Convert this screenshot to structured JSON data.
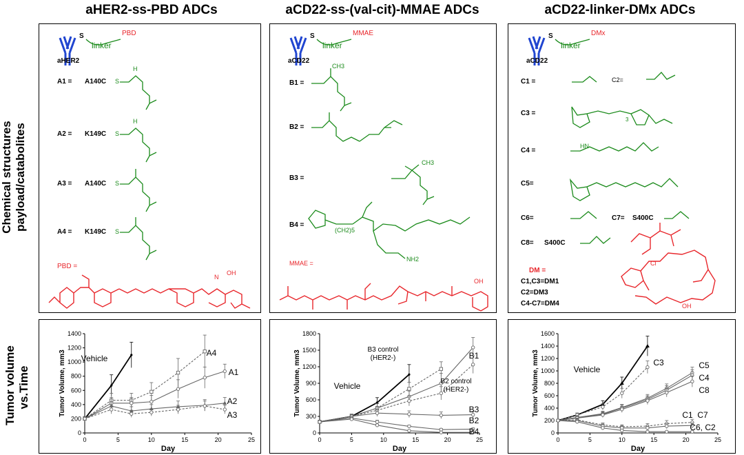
{
  "columns": {
    "col1_title": "aHER2-ss-PBD ADCs",
    "col2_title": "aCD22-ss-(val-cit)-MMAE ADCs",
    "col3_title": "aCD22-linker-DMx ADCs"
  },
  "rows": {
    "row1_label_line1": "Chemical structures",
    "row1_label_line2": "payload/catabolites",
    "row2_label_line1": "Tumor volume",
    "row2_label_line2": "vs.Time"
  },
  "struct": {
    "p1": {
      "ab_name": "aHER2",
      "s": "S",
      "linker": "linker",
      "payload": "PBD",
      "labels": [
        "A1 =",
        "A2 =",
        "A3 =",
        "A4 ="
      ],
      "sites": [
        "A140C",
        "K149C",
        "A140C",
        "K149C"
      ],
      "h": "H",
      "payload_eq": "PBD =",
      "n_me": "N",
      "oh": "OH",
      "h2": "H"
    },
    "p2": {
      "ab_name": "aCD22",
      "s": "S",
      "linker": "linker",
      "payload": "MMAE",
      "labels": [
        "B1 =",
        "B2 =",
        "B3 =",
        "B4 ="
      ],
      "payload_eq": "MMAE =",
      "ch3": "CH3",
      "ch2n": "(CH2)5",
      "nh2": "NH2",
      "oh": "OH"
    },
    "p3": {
      "ab_name": "aCD22",
      "s": "S",
      "linker": "linker",
      "payload": "DMx",
      "labels": [
        "C1 =",
        "C2=",
        "C3 =",
        "C4 =",
        "C5=",
        "C6=",
        "C7=",
        "C8="
      ],
      "site": "S400C",
      "dm_eq": "DM =",
      "dm_lines": [
        "C1,C3=DM1",
        "C2=DM3",
        "C4-C7=DM4"
      ],
      "sub3": "3",
      "cl": "Cl",
      "oh": "OH",
      "hn": "HN"
    }
  },
  "chart_data": [
    {
      "type": "line",
      "title": "",
      "xlabel": "Day",
      "ylabel": "Tumor Volume, mm3",
      "xlim": [
        0,
        25
      ],
      "ylim": [
        0,
        1400
      ],
      "xticks": [
        "0",
        "5",
        "10",
        "15",
        "20",
        "25"
      ],
      "yticks": [
        "0",
        "200",
        "400",
        "600",
        "800",
        "1000",
        "1200",
        "1400"
      ],
      "series": [
        {
          "name": "Vehicle",
          "x": [
            0,
            4,
            7
          ],
          "y": [
            200,
            670,
            1100
          ],
          "err": [
            30,
            150,
            180
          ],
          "style": "solid",
          "marker": "none",
          "bold": true
        },
        {
          "name": "A4",
          "x": [
            0,
            4,
            7,
            10,
            14,
            18
          ],
          "y": [
            200,
            460,
            460,
            580,
            850,
            1150
          ],
          "err": [
            30,
            100,
            100,
            130,
            200,
            230
          ],
          "style": "dashed",
          "marker": "square"
        },
        {
          "name": "A1",
          "x": [
            0,
            4,
            7,
            10,
            14,
            18,
            21
          ],
          "y": [
            200,
            420,
            420,
            440,
            620,
            780,
            870
          ],
          "err": [
            30,
            80,
            80,
            90,
            130,
            150,
            100
          ],
          "style": "solid",
          "marker": "circle"
        },
        {
          "name": "A2",
          "x": [
            0,
            4,
            7,
            10,
            14,
            18,
            21
          ],
          "y": [
            200,
            380,
            310,
            340,
            370,
            390,
            420
          ],
          "err": [
            30,
            60,
            60,
            60,
            80,
            80,
            80
          ],
          "style": "solid",
          "marker": "triangle"
        },
        {
          "name": "A3",
          "x": [
            0,
            4,
            7,
            10,
            14,
            18,
            21
          ],
          "y": [
            200,
            330,
            270,
            290,
            330,
            380,
            330
          ],
          "err": [
            30,
            60,
            50,
            50,
            60,
            70,
            60
          ],
          "style": "dashed",
          "marker": "circle"
        }
      ]
    },
    {
      "type": "line",
      "title": "",
      "xlabel": "Day",
      "ylabel": "Tumor Volume, mm3",
      "xlim": [
        0,
        25
      ],
      "ylim": [
        0,
        1800
      ],
      "xticks": [
        "0",
        "5",
        "10",
        "15",
        "20",
        "25"
      ],
      "yticks": [
        "0",
        "300",
        "600",
        "900",
        "1200",
        "1500",
        "1800"
      ],
      "series": [
        {
          "name": "Vehicle",
          "x": [
            0,
            5,
            9,
            14
          ],
          "y": [
            200,
            300,
            550,
            1060
          ],
          "err": [
            30,
            40,
            90,
            180
          ],
          "style": "solid",
          "marker": "none",
          "bold": true
        },
        {
          "name": "B3 control (HER2-)",
          "x": [
            0,
            5,
            9,
            14,
            19
          ],
          "y": [
            200,
            300,
            450,
            800,
            1160
          ],
          "err": [
            30,
            40,
            80,
            120,
            130
          ],
          "style": "dashed",
          "marker": "square"
        },
        {
          "name": "B1",
          "x": [
            0,
            5,
            9,
            14,
            19,
            24
          ],
          "y": [
            200,
            300,
            450,
            660,
            900,
            1550
          ],
          "err": [
            30,
            40,
            80,
            100,
            180,
            180
          ],
          "style": "solid",
          "marker": "circle"
        },
        {
          "name": "B2 control (HER2-)",
          "x": [
            0,
            5,
            9,
            14,
            19,
            24
          ],
          "y": [
            200,
            300,
            410,
            580,
            720,
            1240
          ],
          "err": [
            30,
            40,
            70,
            90,
            120,
            160
          ],
          "style": "dashed",
          "marker": "circle"
        },
        {
          "name": "B3",
          "x": [
            0,
            5,
            9,
            14,
            19,
            24
          ],
          "y": [
            200,
            300,
            360,
            340,
            320,
            330
          ],
          "err": [
            30,
            40,
            60,
            60,
            60,
            60
          ],
          "style": "solid",
          "marker": "circle"
        },
        {
          "name": "B2",
          "x": [
            0,
            5,
            9,
            14,
            19,
            24
          ],
          "y": [
            200,
            270,
            200,
            120,
            60,
            70
          ],
          "err": [
            30,
            30,
            30,
            20,
            20,
            20
          ],
          "style": "solid",
          "marker": "circle"
        },
        {
          "name": "B4",
          "x": [
            0,
            5,
            9,
            14,
            19,
            24
          ],
          "y": [
            200,
            250,
            140,
            40,
            10,
            10
          ],
          "err": [
            30,
            30,
            20,
            10,
            5,
            5
          ],
          "style": "solid",
          "marker": "circle"
        }
      ]
    },
    {
      "type": "line",
      "title": "",
      "xlabel": "Day",
      "ylabel": "Tumor Volume, mm3",
      "xlim": [
        0,
        25
      ],
      "ylim": [
        0,
        1600
      ],
      "xticks": [
        "0",
        "5",
        "10",
        "15",
        "20",
        "25"
      ],
      "yticks": [
        "0",
        "200",
        "400",
        "600",
        "800",
        "1000",
        "1200",
        "1400",
        "1600"
      ],
      "series": [
        {
          "name": "Vehicle",
          "x": [
            0,
            3,
            7,
            10,
            14
          ],
          "y": [
            200,
            290,
            460,
            800,
            1400
          ],
          "err": [
            20,
            30,
            60,
            100,
            160
          ],
          "style": "solid",
          "marker": "triangle",
          "bold": true
        },
        {
          "name": "C3",
          "x": [
            0,
            3,
            7,
            10,
            14
          ],
          "y": [
            200,
            290,
            420,
            640,
            1060
          ],
          "err": [
            20,
            30,
            50,
            80,
            100
          ],
          "style": "dashed",
          "marker": "circle"
        },
        {
          "name": "C5",
          "x": [
            0,
            3,
            7,
            10,
            14,
            17,
            21
          ],
          "y": [
            200,
            250,
            310,
            410,
            560,
            720,
            970
          ],
          "err": [
            20,
            30,
            40,
            50,
            60,
            70,
            90
          ],
          "style": "solid",
          "marker": "circle"
        },
        {
          "name": "C4",
          "x": [
            0,
            3,
            7,
            10,
            14,
            17,
            21
          ],
          "y": [
            200,
            250,
            300,
            400,
            540,
            690,
            930
          ],
          "err": [
            20,
            30,
            40,
            50,
            60,
            70,
            90
          ],
          "style": "solid",
          "marker": "circle"
        },
        {
          "name": "C8",
          "x": [
            0,
            3,
            7,
            10,
            14,
            17,
            21
          ],
          "y": [
            200,
            240,
            290,
            380,
            520,
            650,
            830
          ],
          "err": [
            20,
            30,
            40,
            50,
            60,
            70,
            90
          ],
          "style": "solid",
          "marker": "circle"
        },
        {
          "name": "C1",
          "x": [
            0,
            3,
            7,
            10,
            14,
            17,
            21
          ],
          "y": [
            200,
            210,
            130,
            100,
            110,
            150,
            170
          ],
          "err": [
            20,
            30,
            30,
            30,
            40,
            50,
            50
          ],
          "style": "dashed",
          "marker": "circle"
        },
        {
          "name": "C7",
          "x": [
            0,
            3,
            7,
            10,
            14,
            17,
            21
          ],
          "y": [
            200,
            200,
            110,
            80,
            80,
            110,
            120
          ],
          "err": [
            20,
            30,
            30,
            30,
            30,
            40,
            40
          ],
          "style": "solid",
          "marker": "circle"
        },
        {
          "name": "C6, C2",
          "x": [
            0,
            3,
            7,
            10,
            14,
            17,
            21
          ],
          "y": [
            200,
            180,
            80,
            40,
            20,
            20,
            20
          ],
          "err": [
            20,
            30,
            20,
            20,
            10,
            10,
            10
          ],
          "style": "solid",
          "marker": "circle"
        }
      ]
    }
  ]
}
